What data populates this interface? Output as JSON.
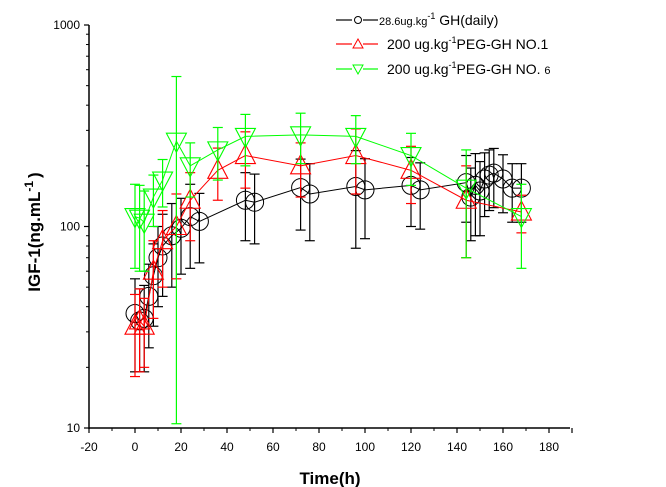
{
  "chart_data": {
    "type": "scatter",
    "title": "",
    "xlabel": "Time(h)",
    "ylabel": "IGF-1(ng.mL-1)",
    "ylabel_main": "IGF-1(ng.mL",
    "ylabel_sup": "-1",
    "ylabel_close": ")",
    "xlim": [
      -20,
      190
    ],
    "ylim": [
      10,
      1000
    ],
    "yscale": "log",
    "grid": false,
    "legend_position": "top-right",
    "x_ticks": [
      -20,
      0,
      20,
      40,
      60,
      80,
      100,
      120,
      140,
      160,
      180
    ],
    "x_tick_labels": [
      "-20",
      "0",
      "20",
      "40",
      "60",
      "80",
      "100",
      "120",
      "140",
      "160",
      "180"
    ],
    "y_ticks": [
      10,
      100,
      1000
    ],
    "y_tick_labels": [
      "10",
      "100",
      "1000"
    ],
    "series": [
      {
        "name": "28.6ug.kg-1 GH(daily)",
        "legend_pre": "28.6ug.kg",
        "legend_sup": "-1",
        "legend_post": " GH(daily)",
        "color": "#000000",
        "marker": "circle",
        "x": [
          0,
          2,
          4,
          6,
          8,
          10,
          12,
          16,
          20,
          24,
          28,
          48,
          52,
          72,
          76,
          96,
          100,
          120,
          124,
          144,
          146,
          148,
          150,
          152,
          154,
          156,
          160,
          164,
          168
        ],
        "y": [
          37,
          34,
          35,
          45,
          57,
          70,
          80,
          90,
          98,
          112,
          106,
          135,
          132,
          156,
          145,
          158,
          152,
          160,
          152,
          165,
          140,
          160,
          150,
          172,
          180,
          184,
          172,
          155,
          155
        ],
        "err": [
          18,
          15,
          16,
          20,
          25,
          30,
          35,
          40,
          40,
          50,
          40,
          50,
          50,
          60,
          60,
          80,
          65,
          60,
          55,
          60,
          55,
          70,
          60,
          60,
          60,
          60,
          55,
          50,
          50
        ]
      },
      {
        "name": "200 ug.kg-1 PEG-GH NO.1",
        "legend_pre": "200 ug.kg",
        "legend_sup": "-1",
        "legend_post": "PEG-GH NO.1",
        "color": "#ff0000",
        "marker": "triangle-up",
        "x": [
          0,
          2,
          4,
          8,
          12,
          18,
          24,
          36,
          48,
          72,
          96,
          120,
          144,
          168
        ],
        "y": [
          32,
          34,
          32,
          60,
          85,
          100,
          135,
          190,
          225,
          200,
          225,
          190,
          135,
          118
        ],
        "err": [
          14,
          15,
          12,
          25,
          35,
          45,
          50,
          55,
          70,
          60,
          80,
          60,
          65,
          25
        ]
      },
      {
        "name": "200 ug.kg-1 PEG-GH NO. 6",
        "legend_pre": "200 ug.kg",
        "legend_sup": "-1",
        "legend_post": "PEG-GH NO. ",
        "legend_tail": "6",
        "color": "#00ff00",
        "marker": "triangle-down",
        "x": [
          0,
          2,
          4,
          8,
          12,
          18,
          24,
          36,
          48,
          72,
          96,
          120,
          144,
          168
        ],
        "y": [
          112,
          110,
          105,
          140,
          170,
          265,
          200,
          240,
          280,
          285,
          280,
          225,
          155,
          112
        ],
        "err": [
          50,
          50,
          45,
          40,
          45,
          290,
          60,
          70,
          80,
          80,
          75,
          65,
          85,
          50
        ]
      }
    ]
  }
}
